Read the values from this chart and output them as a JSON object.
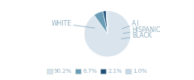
{
  "labels": [
    "WHITE",
    "HISPANIC",
    "BLACK",
    "A.I."
  ],
  "values": [
    90.2,
    6.7,
    2.1,
    1.0
  ],
  "colors": [
    "#d9e4ed",
    "#6a9db5",
    "#1f4e79",
    "#c5d8e8"
  ],
  "legend_labels": [
    "90.2%",
    "6.7%",
    "2.1%",
    "1.0%"
  ],
  "legend_colors": [
    "#d9e4ed",
    "#6a9db5",
    "#1f4e79",
    "#c5d8e8"
  ],
  "label_color": "#8fadbf",
  "startangle": 90,
  "figsize": [
    2.4,
    1.0
  ],
  "dpi": 100
}
